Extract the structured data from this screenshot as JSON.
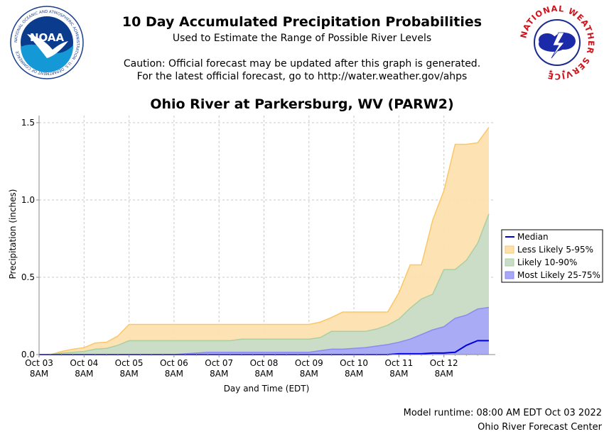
{
  "header": {
    "title": "10 Day Accumulated Precipitation Probabilities",
    "subtitle": "Used to Estimate the Range of Possible River Levels",
    "caution_line1": "Caution: Official forecast may be updated after this graph is generated.",
    "caution_line2": "For the latest official forecast, go to http://water.weather.gov/ahps"
  },
  "logos": {
    "noaa": {
      "text": "NOAA",
      "ring_text": "NATIONAL OCEANIC AND ATMOSPHERIC ADMINISTRATION · U.S. DEPARTMENT OF COMMERCE",
      "color": "#0a3b8c"
    },
    "nws": {
      "ring_text": "NATIONAL WEATHER SERVICE",
      "color": "#d0141c"
    }
  },
  "footer": {
    "runtime": "Model runtime: 08:00 AM EDT Oct 03 2022",
    "center": "Ohio River Forecast Center"
  },
  "chart_data": {
    "type": "area",
    "title": "Ohio River at Parkersburg, WV (PARW2)",
    "xlabel": "Day and Time (EDT)",
    "ylabel": "Precipitation (inches)",
    "ylim": [
      0,
      1.5
    ],
    "yticks": [
      "0.0",
      "0.5",
      "1.0",
      "1.5"
    ],
    "xticks": [
      {
        "day": "Oct 03",
        "time": "8AM"
      },
      {
        "day": "Oct 04",
        "time": "8AM"
      },
      {
        "day": "Oct 05",
        "time": "8AM"
      },
      {
        "day": "Oct 06",
        "time": "8AM"
      },
      {
        "day": "Oct 07",
        "time": "8AM"
      },
      {
        "day": "Oct 08",
        "time": "8AM"
      },
      {
        "day": "Oct 09",
        "time": "8AM"
      },
      {
        "day": "Oct 10",
        "time": "8AM"
      },
      {
        "day": "Oct 11",
        "time": "8AM"
      },
      {
        "day": "Oct 12",
        "time": "8AM"
      }
    ],
    "grid": true,
    "legend_position": "right",
    "x": [
      0,
      0.25,
      0.5,
      0.75,
      1.0,
      1.25,
      1.5,
      1.75,
      2.0,
      2.25,
      2.5,
      2.75,
      3.0,
      3.25,
      3.5,
      3.75,
      4.0,
      4.25,
      4.5,
      4.75,
      5.0,
      5.25,
      5.5,
      5.75,
      6.0,
      6.25,
      6.5,
      6.75,
      7.0,
      7.25,
      7.5,
      7.75,
      8.0,
      8.25,
      8.5,
      8.75,
      9.0,
      9.25,
      9.5,
      9.75,
      10.0
    ],
    "series": [
      {
        "name": "Less Likely 5-95%",
        "color": "#fbc766",
        "fill": "#fde0b0",
        "low": [
          0,
          0,
          0,
          0,
          0,
          0,
          0,
          0,
          0,
          0,
          0,
          0,
          0,
          0,
          0,
          0,
          0,
          0,
          0,
          0,
          0,
          0,
          0,
          0,
          0,
          0,
          0,
          0,
          0,
          0,
          0,
          0,
          0,
          0,
          0,
          0,
          0,
          0,
          0,
          0,
          0
        ],
        "high": [
          0,
          0,
          0.02,
          0.035,
          0.045,
          0.075,
          0.08,
          0.12,
          0.195,
          0.195,
          0.195,
          0.195,
          0.195,
          0.195,
          0.195,
          0.195,
          0.195,
          0.195,
          0.195,
          0.195,
          0.195,
          0.195,
          0.195,
          0.195,
          0.195,
          0.21,
          0.24,
          0.275,
          0.275,
          0.275,
          0.275,
          0.275,
          0.4,
          0.58,
          0.58,
          0.87,
          1.06,
          1.36,
          1.36,
          1.37,
          1.47
        ]
      },
      {
        "name": "Likely 10-90%",
        "color": "#aacfa2",
        "fill": "#c8dcc8",
        "low": [
          0,
          0,
          0,
          0,
          0,
          0,
          0,
          0,
          0,
          0,
          0,
          0,
          0,
          0,
          0,
          0,
          0,
          0,
          0,
          0,
          0,
          0,
          0,
          0,
          0,
          0,
          0,
          0,
          0,
          0,
          0,
          0,
          0,
          0,
          0,
          0,
          0,
          0,
          0,
          0,
          0
        ],
        "high": [
          0,
          0,
          0.01,
          0.015,
          0.02,
          0.035,
          0.04,
          0.06,
          0.09,
          0.09,
          0.09,
          0.09,
          0.09,
          0.09,
          0.09,
          0.09,
          0.09,
          0.09,
          0.1,
          0.1,
          0.1,
          0.1,
          0.1,
          0.1,
          0.1,
          0.11,
          0.15,
          0.15,
          0.15,
          0.15,
          0.165,
          0.19,
          0.23,
          0.3,
          0.36,
          0.39,
          0.55,
          0.55,
          0.61,
          0.72,
          0.91
        ]
      },
      {
        "name": "Most Likely 25-75%",
        "color": "#8a8af0",
        "fill": "#a8a8f8",
        "low": [
          0,
          0,
          0,
          0,
          0,
          0,
          0,
          0,
          0,
          0,
          0,
          0,
          0,
          0,
          0,
          0,
          0,
          0,
          0,
          0,
          0,
          0,
          0,
          0,
          0,
          0,
          0,
          0,
          0,
          0,
          0,
          0,
          0,
          0,
          0,
          0,
          0,
          0,
          0,
          0,
          0
        ],
        "high": [
          0,
          0,
          0,
          0,
          0,
          0,
          0,
          0,
          0,
          0,
          0,
          0,
          0,
          0.005,
          0.01,
          0.015,
          0.015,
          0.015,
          0.015,
          0.015,
          0.015,
          0.015,
          0.015,
          0.015,
          0.015,
          0.025,
          0.035,
          0.035,
          0.04,
          0.045,
          0.055,
          0.065,
          0.08,
          0.1,
          0.13,
          0.16,
          0.18,
          0.235,
          0.255,
          0.295,
          0.305
        ]
      },
      {
        "name": "Median",
        "color": "#0000e0",
        "values": [
          0,
          0,
          0,
          0,
          0,
          0,
          0,
          0,
          0,
          0,
          0,
          0,
          0,
          0,
          0,
          0,
          0,
          0,
          0,
          0,
          0,
          0,
          0,
          0,
          0,
          0,
          0,
          0,
          0,
          0,
          0,
          0,
          0.005,
          0.005,
          0.005,
          0.01,
          0.01,
          0.015,
          0.06,
          0.09,
          0.09
        ]
      }
    ],
    "legend": [
      "Median",
      "Less Likely 5-95%",
      "Likely 10-90%",
      "Most Likely 25-75%"
    ]
  }
}
